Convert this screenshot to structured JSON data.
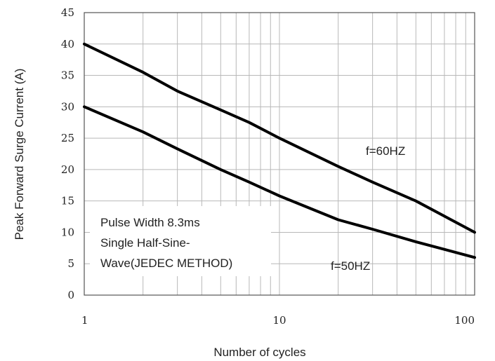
{
  "chart_data": {
    "type": "line",
    "title": "",
    "xlabel": "Number of cycles",
    "ylabel": "Peak Forward Surge Current (A)",
    "xscale": "log",
    "xlim": [
      1,
      100
    ],
    "ylim": [
      0,
      45
    ],
    "xticks": [
      1,
      10,
      100
    ],
    "yticks": [
      0,
      5,
      10,
      15,
      20,
      25,
      30,
      35,
      40,
      45
    ],
    "grid": true,
    "series": [
      {
        "name": "f=60HZ",
        "x": [
          1,
          2,
          3,
          5,
          7,
          10,
          20,
          30,
          50,
          100
        ],
        "y": [
          40,
          35.5,
          32.5,
          29.5,
          27.5,
          25,
          20.5,
          18,
          15,
          10
        ]
      },
      {
        "name": "f=50HZ",
        "x": [
          1,
          2,
          3,
          5,
          7,
          10,
          20,
          30,
          50,
          100
        ],
        "y": [
          30,
          26,
          23.3,
          20,
          18,
          15.8,
          12,
          10.5,
          8.5,
          6
        ]
      }
    ],
    "annotations": [
      "Pulse Width 8.3ms",
      "Single Half-Sine-",
      "Wave(JEDEC METHOD)"
    ]
  }
}
